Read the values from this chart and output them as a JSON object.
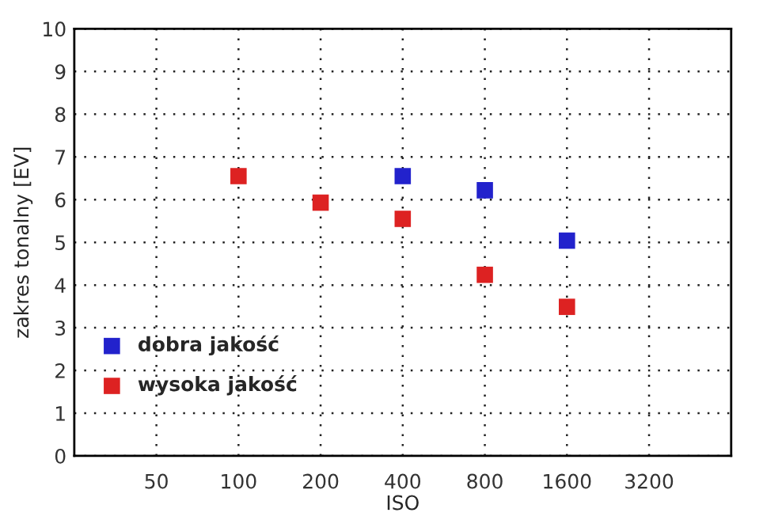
{
  "chart_data": {
    "type": "scatter",
    "xlabel": "ISO",
    "ylabel": "zakres tonalny [EV]",
    "log": "x",
    "xlim": [
      25,
      6400
    ],
    "xticks": [
      50,
      100,
      200,
      400,
      800,
      1600,
      3200
    ],
    "ylim": [
      0,
      10
    ],
    "yticks": [
      0,
      1,
      2,
      3,
      4,
      5,
      6,
      7,
      8,
      9,
      10
    ],
    "grid": true,
    "legend": "bottom left",
    "marker": "square",
    "series": [
      {
        "name": "dobra jakość",
        "color": "#2222cc",
        "x": [
          400,
          800,
          1600
        ],
        "values": [
          6.55,
          6.22,
          5.04
        ]
      },
      {
        "name": "wysoka jakość",
        "color": "#dd2222",
        "x": [
          100,
          200,
          400,
          800,
          1600
        ],
        "values": [
          6.55,
          5.93,
          5.55,
          4.24,
          3.49
        ]
      }
    ]
  }
}
